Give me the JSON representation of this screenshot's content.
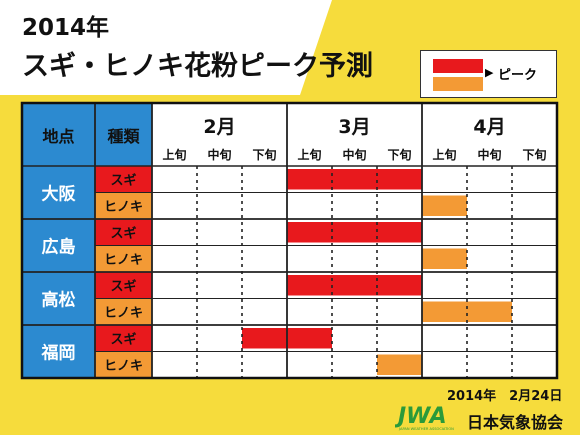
{
  "title": {
    "year": "2014年",
    "main": "スギ・ヒノキ花粉ピーク予測"
  },
  "legend": {
    "marker": "▶",
    "label": "ピーク"
  },
  "colors": {
    "background_yellow": "#f6dc3c",
    "header_blue": "#2c8ad0",
    "sugi_red": "#e8191d",
    "hinoki_orange": "#f39a35",
    "grid_line": "#222222"
  },
  "chart_data": {
    "type": "table",
    "headers": {
      "location": "地点",
      "species": "種類"
    },
    "months": [
      "2月",
      "3月",
      "4月"
    ],
    "periods": [
      "上旬",
      "中旬",
      "下旬"
    ],
    "locations": [
      {
        "name": "大阪",
        "rows": [
          {
            "species": "スギ",
            "color": "sugi_red",
            "peak": [
              3,
              5
            ]
          },
          {
            "species": "ヒノキ",
            "color": "hinoki_orange",
            "peak": [
              6,
              6
            ]
          }
        ]
      },
      {
        "name": "広島",
        "rows": [
          {
            "species": "スギ",
            "color": "sugi_red",
            "peak": [
              3,
              5
            ]
          },
          {
            "species": "ヒノキ",
            "color": "hinoki_orange",
            "peak": [
              6,
              6
            ]
          }
        ]
      },
      {
        "name": "高松",
        "rows": [
          {
            "species": "スギ",
            "color": "sugi_red",
            "peak": [
              3,
              5
            ]
          },
          {
            "species": "ヒノキ",
            "color": "hinoki_orange",
            "peak": [
              6,
              7
            ]
          }
        ]
      },
      {
        "name": "福岡",
        "rows": [
          {
            "species": "スギ",
            "color": "sugi_red",
            "peak": [
              2,
              3
            ]
          },
          {
            "species": "ヒノキ",
            "color": "hinoki_orange",
            "peak": [
              5,
              5
            ]
          }
        ]
      }
    ]
  },
  "footer": {
    "date": "2014年　2月24日",
    "logo_text": "JWA",
    "logo_subtext": "JAPAN WEATHER ASSOCIATION",
    "organization": "日本気象協会"
  }
}
